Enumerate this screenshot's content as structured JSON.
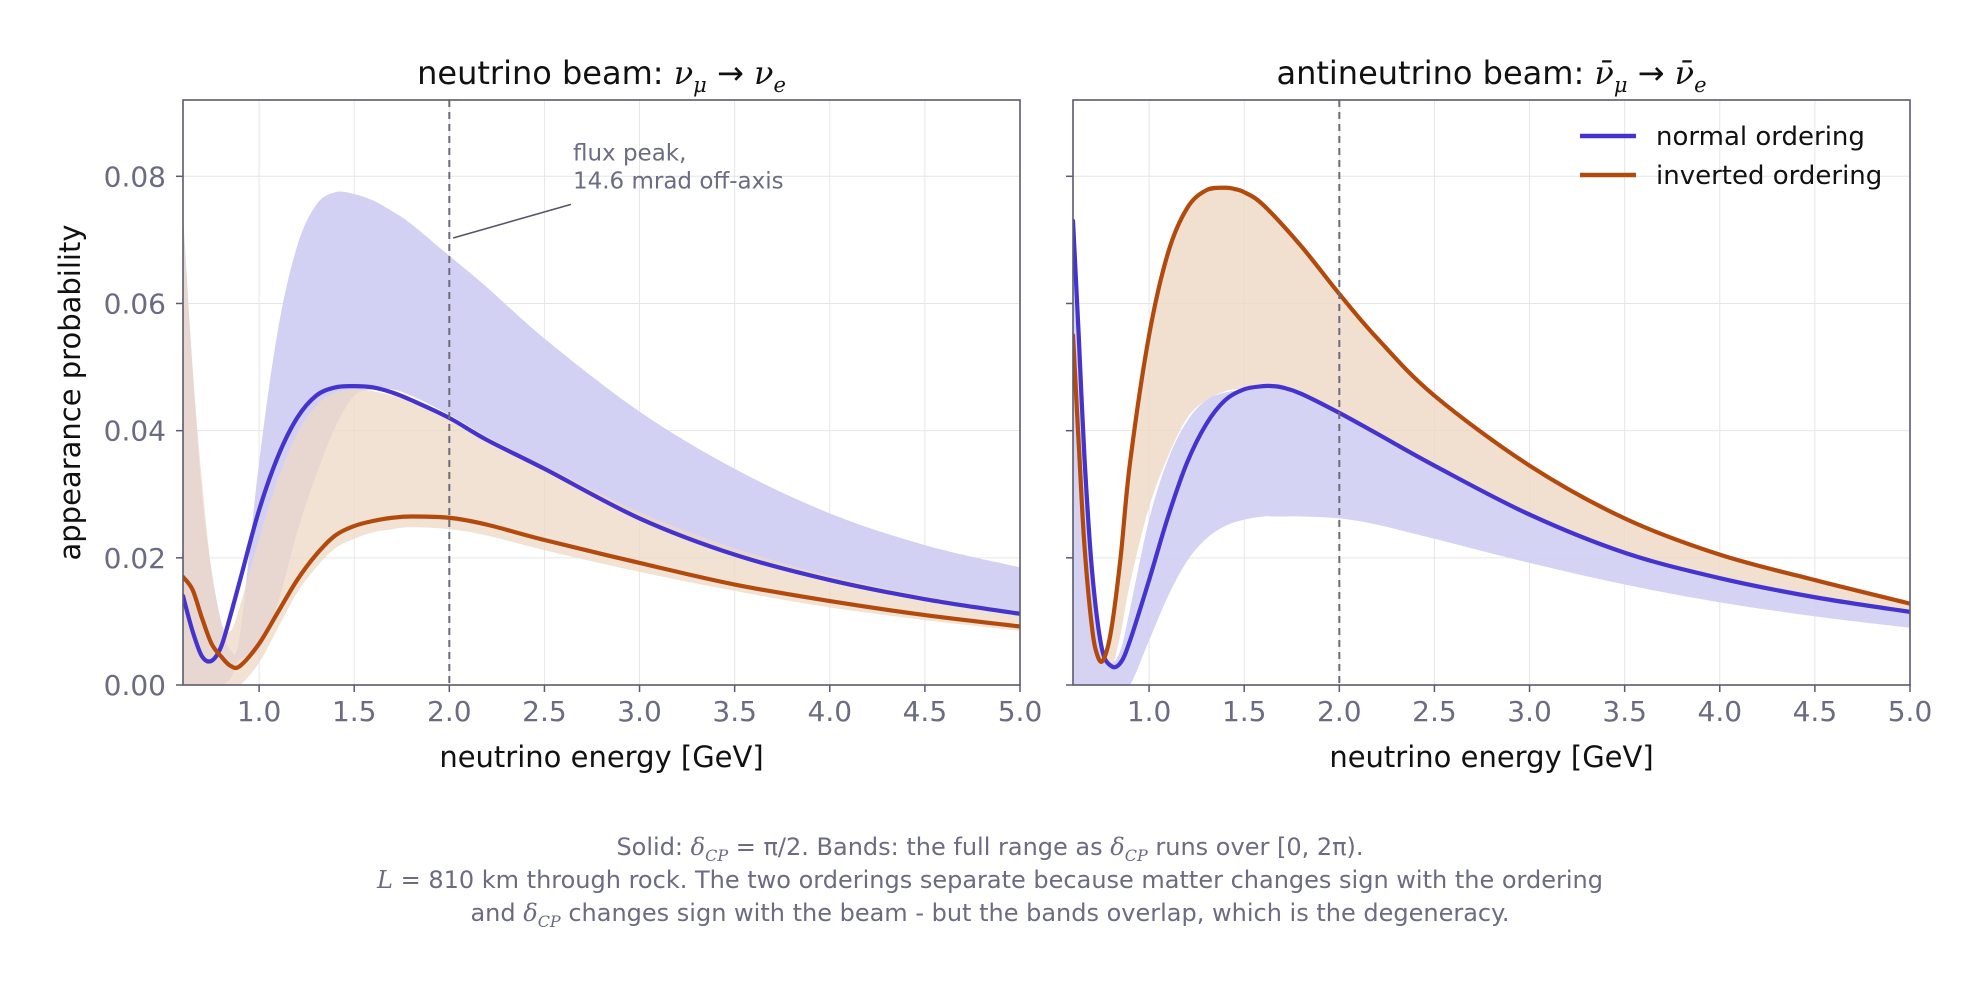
{
  "colors": {
    "normal": "#4433cc",
    "inverted": "#b24a0e",
    "normal_band": "#d3d1f3",
    "inverted_band": "#eed8c4",
    "axis": "#5a5a70",
    "grid": "#e6e6ea",
    "tick_text": "#6b6b82",
    "title_text": "#111111",
    "annotation": "#6b6b82"
  },
  "caption": {
    "line1_prefix": "Solid: ",
    "line1_delta": "δ",
    "line1_sub": "CP",
    "line1_mid": " = π/2.  Bands: the full range as ",
    "line1_delta2": "δ",
    "line1_sub2": "CP",
    "line1_end": " runs over [0, 2π).",
    "line2_L": "L",
    "line2_rest": " = 810 km through rock. The two orderings separate because matter changes sign with the ordering",
    "line3_prefix": "and ",
    "line3_delta": "δ",
    "line3_sub": "CP",
    "line3_rest": " changes sign with the beam - but the bands overlap, which is the degeneracy."
  },
  "chart_data": [
    {
      "type": "line",
      "title": "neutrino beam:  νμ → νe",
      "title_parts": {
        "text": "neutrino beam:  ",
        "a": "ν",
        "a_sub": "μ",
        "arrow": "→",
        "b": "ν",
        "b_sub": "e"
      },
      "xlabel": "neutrino energy  [GeV]",
      "ylabel": "appearance probability",
      "xlim": [
        0.6,
        5.0
      ],
      "ylim": [
        0.0,
        0.092
      ],
      "xticks": [
        1.0,
        1.5,
        2.0,
        2.5,
        3.0,
        3.5,
        4.0,
        4.5,
        5.0
      ],
      "xtick_labels": [
        "1.0",
        "1.5",
        "2.0",
        "2.5",
        "3.0",
        "3.5",
        "4.0",
        "4.5",
        "5.0"
      ],
      "yticks": [
        0.0,
        0.02,
        0.04,
        0.06,
        0.08
      ],
      "ytick_labels": [
        "0.00",
        "0.02",
        "0.04",
        "0.06",
        "0.08"
      ],
      "grid": true,
      "vline": {
        "x": 2.0,
        "style": "dashed"
      },
      "annotation": {
        "lines": [
          "flux peak,",
          "14.6 mrad off-axis"
        ],
        "x": 2.65,
        "y": 0.0825,
        "arrow_to": [
          2.02,
          0.0703
        ]
      },
      "series": [
        {
          "name": "normal ordering",
          "x": [
            0.6,
            0.65,
            0.7,
            0.75,
            0.8,
            0.85,
            0.9,
            1.0,
            1.1,
            1.2,
            1.3,
            1.4,
            1.5,
            1.6,
            1.7,
            1.8,
            2.0,
            2.2,
            2.5,
            3.0,
            3.5,
            4.0,
            4.5,
            5.0
          ],
          "y": [
            0.014,
            0.0085,
            0.0045,
            0.0038,
            0.006,
            0.011,
            0.0165,
            0.0275,
            0.036,
            0.042,
            0.0455,
            0.0468,
            0.047,
            0.0468,
            0.046,
            0.0448,
            0.042,
            0.0385,
            0.034,
            0.0262,
            0.0205,
            0.0165,
            0.0135,
            0.0112
          ],
          "band_low": [
            0.0,
            0.0,
            0.0,
            0.0,
            0.0,
            0.001,
            0.008,
            0.035,
            0.056,
            0.069,
            0.0755,
            0.0775,
            0.0772,
            0.0762,
            0.0745,
            0.0725,
            0.0675,
            0.0625,
            0.0545,
            0.043,
            0.034,
            0.027,
            0.022,
            0.0185
          ],
          "band_high": [
            0.074,
            0.05,
            0.03,
            0.018,
            0.01,
            0.0055,
            0.004,
            0.0055,
            0.013,
            0.024,
            0.033,
            0.0405,
            0.0455,
            0.0465,
            0.0465,
            0.0455,
            0.0425,
            0.039,
            0.034,
            0.0265,
            0.0205,
            0.0165,
            0.0135,
            0.0112
          ],
          "band_note": "band spans from the lower edge list 'band_high' to upper edge list 'band_low' (upper envelope)"
        },
        {
          "name": "inverted ordering",
          "x": [
            0.6,
            0.65,
            0.7,
            0.75,
            0.8,
            0.85,
            0.9,
            1.0,
            1.1,
            1.2,
            1.3,
            1.4,
            1.5,
            1.6,
            1.7,
            1.8,
            2.0,
            2.2,
            2.5,
            3.0,
            3.5,
            4.0,
            4.5,
            5.0
          ],
          "y": [
            0.017,
            0.015,
            0.0105,
            0.0065,
            0.0045,
            0.003,
            0.003,
            0.0065,
            0.0115,
            0.0165,
            0.0205,
            0.0235,
            0.025,
            0.0258,
            0.0263,
            0.0265,
            0.0263,
            0.0252,
            0.0228,
            0.0192,
            0.0158,
            0.0132,
            0.011,
            0.0092
          ],
          "band_low": [
            0.0,
            0.0,
            0.0,
            0.0,
            0.0,
            0.0,
            0.0,
            0.0035,
            0.009,
            0.0145,
            0.0185,
            0.0215,
            0.023,
            0.024,
            0.0245,
            0.0248,
            0.0245,
            0.0235,
            0.0212,
            0.0178,
            0.0148,
            0.0122,
            0.0102,
            0.0085
          ],
          "band_high": [
            0.073,
            0.05,
            0.032,
            0.018,
            0.01,
            0.0085,
            0.0125,
            0.023,
            0.0325,
            0.0395,
            0.044,
            0.046,
            0.0465,
            0.0462,
            0.0455,
            0.0445,
            0.042,
            0.039,
            0.0345,
            0.0272,
            0.0215,
            0.0172,
            0.014,
            0.0115
          ]
        }
      ]
    },
    {
      "type": "line",
      "title": "antineutrino beam:  ν̄μ → ν̄e",
      "title_parts": {
        "text": "antineutrino beam:  ",
        "a": "ν̄",
        "a_sub": "μ",
        "arrow": "→",
        "b": "ν̄",
        "b_sub": "e"
      },
      "xlabel": "neutrino energy  [GeV]",
      "ylabel": "",
      "xlim": [
        0.6,
        5.0
      ],
      "ylim": [
        0.0,
        0.092
      ],
      "xticks": [
        1.0,
        1.5,
        2.0,
        2.5,
        3.0,
        3.5,
        4.0,
        4.5,
        5.0
      ],
      "xtick_labels": [
        "1.0",
        "1.5",
        "2.0",
        "2.5",
        "3.0",
        "3.5",
        "4.0",
        "4.5",
        "5.0"
      ],
      "yticks": [
        0.0,
        0.02,
        0.04,
        0.06,
        0.08
      ],
      "ytick_labels": [
        "",
        "",
        "",
        "",
        ""
      ],
      "grid": true,
      "legend": "top-right",
      "vline": {
        "x": 2.0,
        "style": "dashed"
      },
      "series": [
        {
          "name": "normal ordering",
          "x": [
            0.6,
            0.63,
            0.66,
            0.7,
            0.75,
            0.8,
            0.85,
            0.9,
            1.0,
            1.1,
            1.2,
            1.3,
            1.4,
            1.5,
            1.6,
            1.65,
            1.7,
            1.8,
            2.0,
            2.2,
            2.5,
            3.0,
            3.5,
            4.0,
            4.5,
            5.0
          ],
          "y": [
            0.073,
            0.055,
            0.036,
            0.018,
            0.006,
            0.003,
            0.0035,
            0.007,
            0.0165,
            0.0265,
            0.035,
            0.041,
            0.0448,
            0.0465,
            0.047,
            0.047,
            0.0468,
            0.0458,
            0.0428,
            0.0395,
            0.0345,
            0.0268,
            0.0208,
            0.0168,
            0.0138,
            0.0115
          ],
          "band_low": [
            0.0,
            0.0,
            0.0,
            0.0,
            0.0,
            0.0,
            0.0,
            0.0,
            0.007,
            0.014,
            0.0195,
            0.023,
            0.025,
            0.026,
            0.0265,
            0.0265,
            0.0265,
            0.0265,
            0.0262,
            0.0252,
            0.023,
            0.0192,
            0.0158,
            0.013,
            0.0108,
            0.009
          ],
          "band_high": [
            0.073,
            0.055,
            0.036,
            0.018,
            0.006,
            0.0035,
            0.0055,
            0.012,
            0.026,
            0.0355,
            0.0415,
            0.0448,
            0.046,
            0.0465,
            0.047,
            0.047,
            0.0468,
            0.0458,
            0.0428,
            0.0395,
            0.0348,
            0.0272,
            0.0212,
            0.0172,
            0.0142,
            0.0118
          ]
        },
        {
          "name": "inverted ordering",
          "x": [
            0.6,
            0.63,
            0.66,
            0.7,
            0.73,
            0.76,
            0.8,
            0.85,
            0.9,
            1.0,
            1.1,
            1.2,
            1.3,
            1.4,
            1.45,
            1.5,
            1.6,
            1.8,
            2.0,
            2.2,
            2.5,
            3.0,
            3.5,
            4.0,
            4.5,
            5.0
          ],
          "y": [
            0.055,
            0.038,
            0.022,
            0.009,
            0.0045,
            0.004,
            0.0085,
            0.02,
            0.035,
            0.055,
            0.068,
            0.075,
            0.0778,
            0.0782,
            0.078,
            0.0775,
            0.0755,
            0.069,
            0.0615,
            0.0545,
            0.0455,
            0.0345,
            0.0262,
            0.0205,
            0.0165,
            0.0128
          ],
          "band_low": [
            0.0,
            0.0,
            0.0,
            0.0,
            0.0,
            0.0,
            0.002,
            0.008,
            0.016,
            0.028,
            0.036,
            0.042,
            0.0448,
            0.0462,
            0.0465,
            0.0465,
            0.0465,
            0.0452,
            0.0425,
            0.039,
            0.034,
            0.0262,
            0.0202,
            0.016,
            0.013,
            0.0108
          ],
          "band_high": [
            0.055,
            0.038,
            0.022,
            0.009,
            0.0045,
            0.004,
            0.0085,
            0.02,
            0.035,
            0.055,
            0.068,
            0.075,
            0.0778,
            0.0782,
            0.078,
            0.0775,
            0.0755,
            0.069,
            0.0615,
            0.0545,
            0.0455,
            0.0345,
            0.0262,
            0.0205,
            0.0165,
            0.0128
          ]
        }
      ]
    }
  ]
}
